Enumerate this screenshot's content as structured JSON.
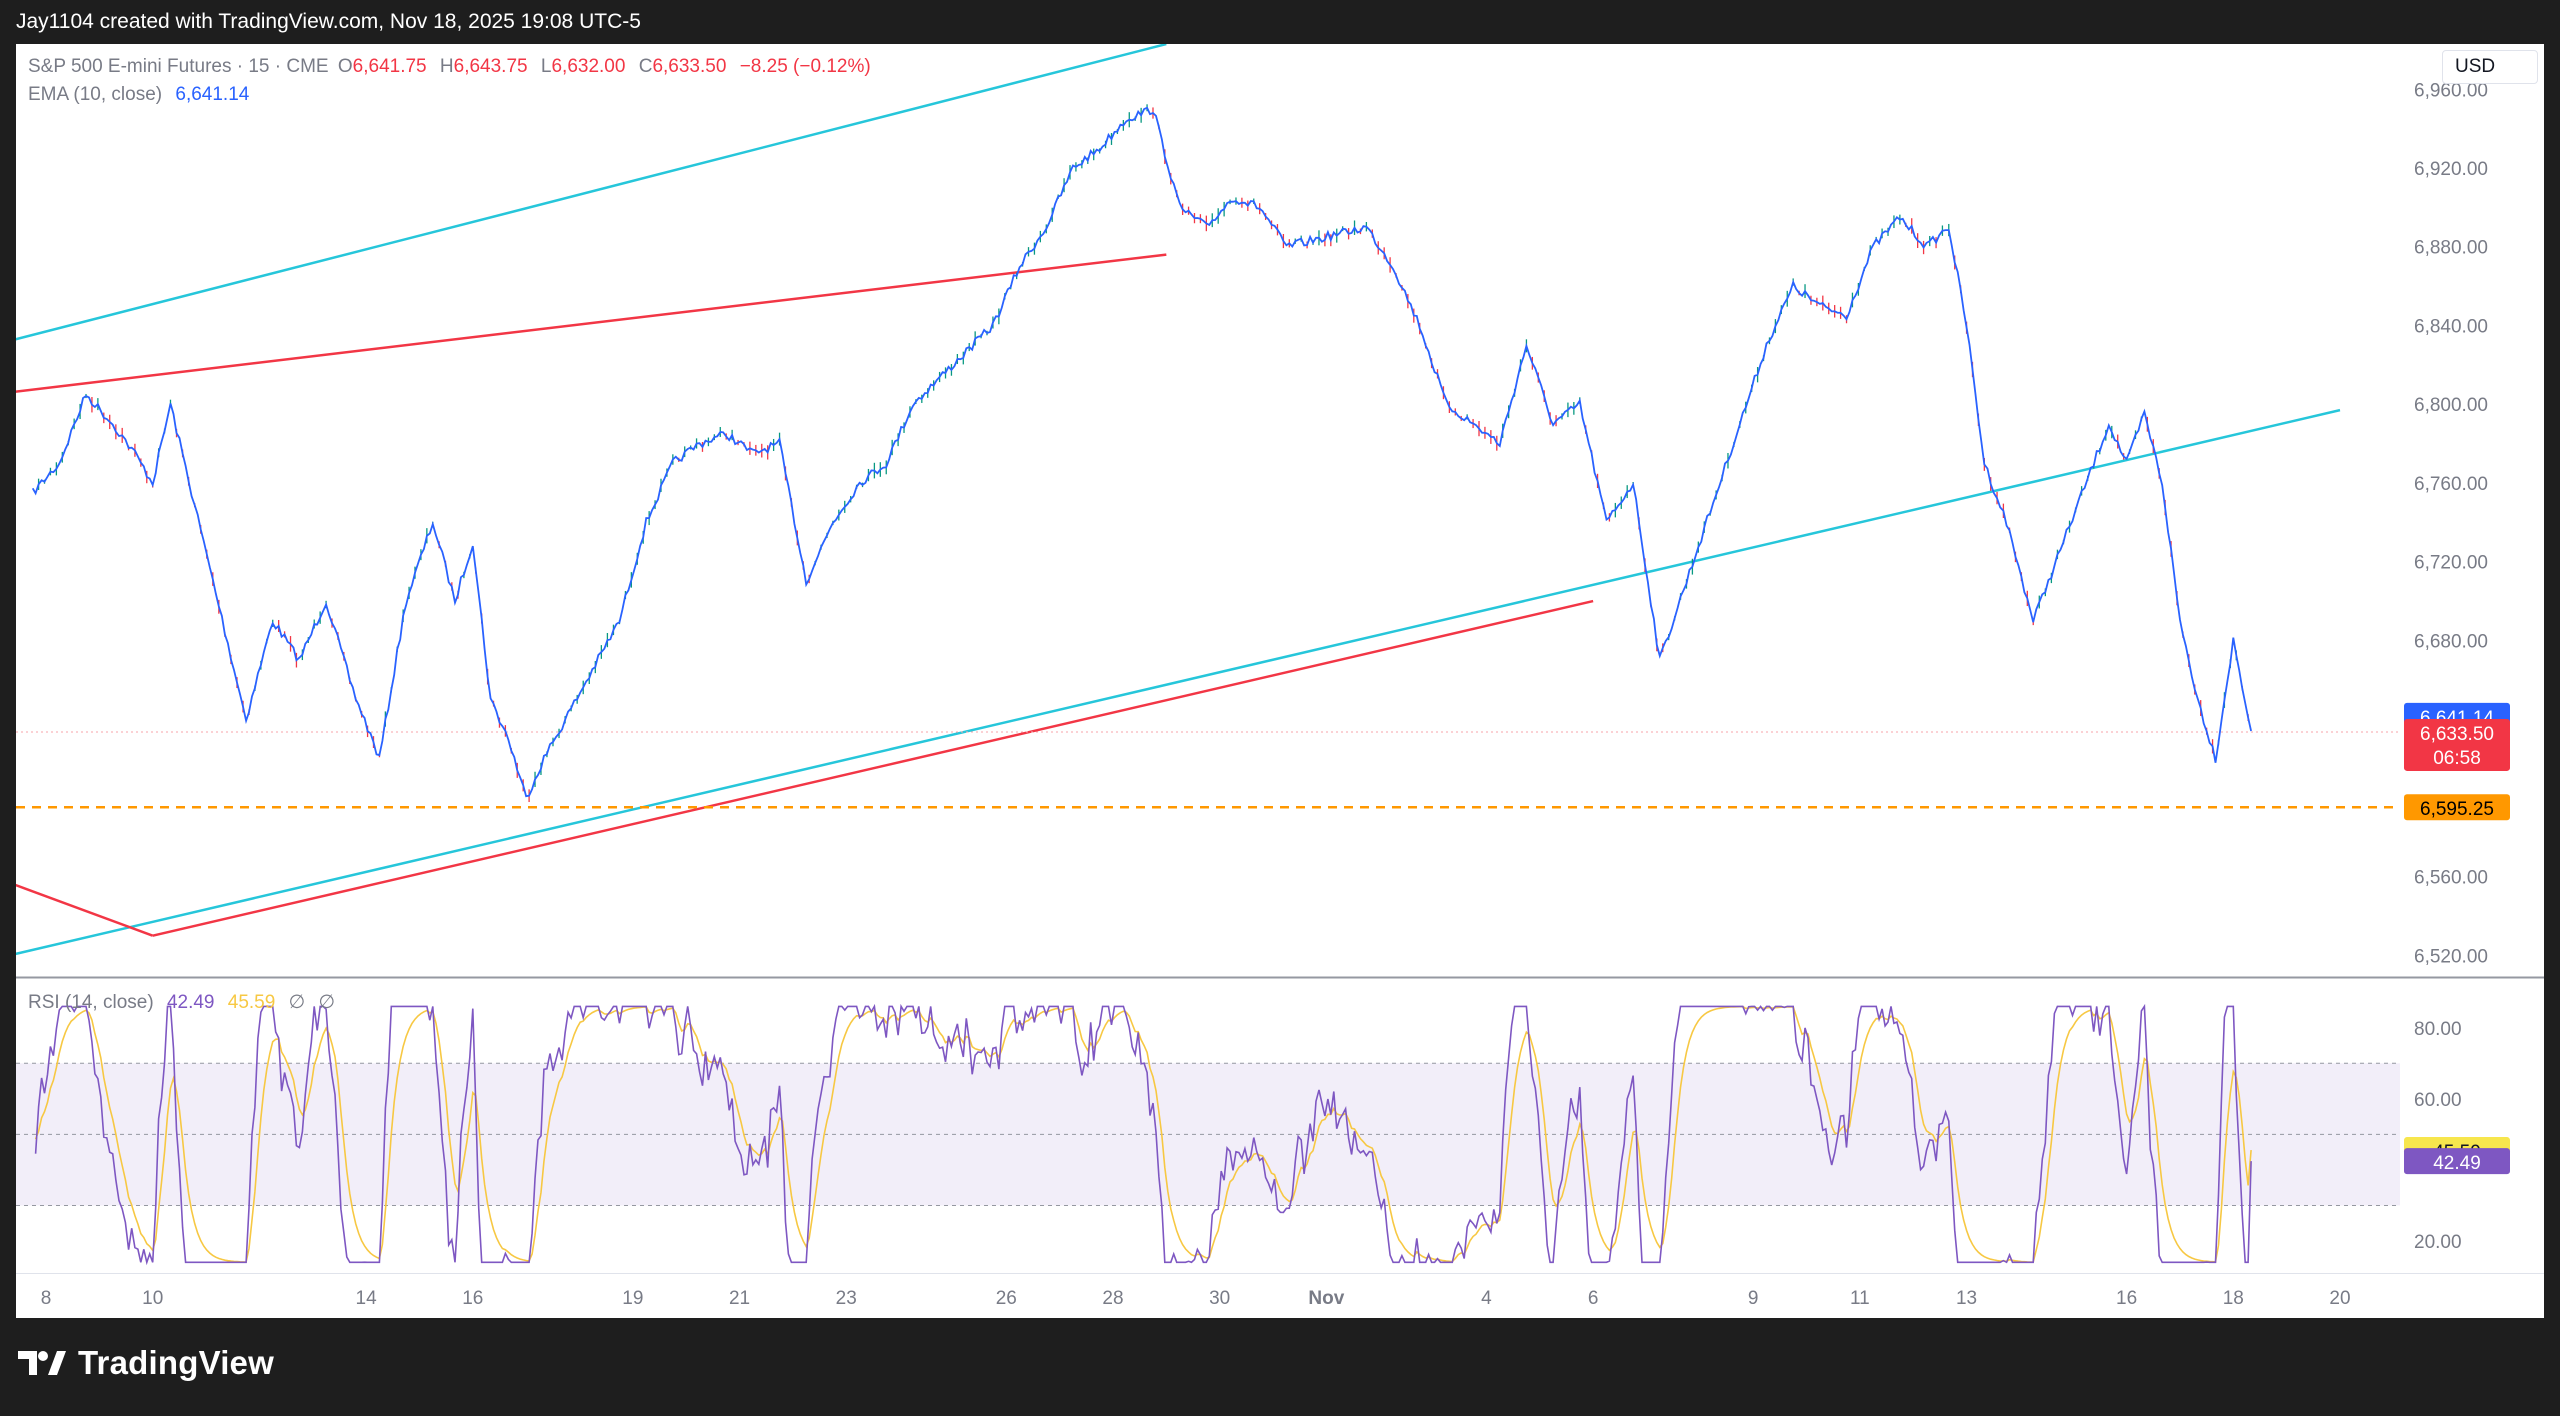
{
  "header": {
    "attribution": "Jay1104 created with TradingView.com, Nov 18, 2025 19:08 UTC-5"
  },
  "legend": {
    "symbol": "S&P 500 E-mini Futures · 15 · CME",
    "o_label": "O",
    "o_value": "6,641.75",
    "h_label": "H",
    "h_value": "6,643.75",
    "l_label": "L",
    "l_value": "6,632.00",
    "c_label": "C",
    "c_value": "6,633.50",
    "change": "−8.25 (−0.12%)",
    "ema_label": "EMA (10, close)",
    "ema_value": "6,641.14"
  },
  "currency": "USD",
  "price_badges": {
    "ema": "6,641.14",
    "last": "6,633.50",
    "countdown": "06:58",
    "level": "6,595.25"
  },
  "rsi_legend": {
    "label": "RSI (14, close)",
    "rsi_value": "42.49",
    "ma_value": "45.59",
    "na1": "∅",
    "na2": "∅"
  },
  "rsi_badges": {
    "ma": "45.59",
    "rsi": "42.49"
  },
  "colors": {
    "price_line": "#2962ff",
    "up": "#089981",
    "down": "#f23645",
    "channel": "#26c6da",
    "trendline": "#f23645",
    "level": "#ff9800",
    "rsi": "#7e57c2",
    "rsi_ma": "#f7c843",
    "rsi_band": "#7e57c2"
  },
  "brand": {
    "name": "TradingView"
  },
  "chart_data": {
    "type": "line",
    "title": "S&P 500 E-mini Futures · 15 · CME",
    "x_ticks": [
      "8",
      "10",
      "14",
      "16",
      "19",
      "21",
      "23",
      "26",
      "28",
      "30",
      "Nov",
      "4",
      "6",
      "9",
      "11",
      "13",
      "16",
      "18",
      "20"
    ],
    "y_ticks": [
      "6,960.00",
      "6,920.00",
      "6,880.00",
      "6,840.00",
      "6,800.00",
      "6,760.00",
      "6,720.00",
      "6,680.00",
      "6,560.00",
      "6,520.00"
    ],
    "ylim": [
      6509,
      6983
    ],
    "x_label_date_range": [
      "Oct 8",
      "Nov 20"
    ],
    "series": [
      {
        "name": "EMA (10, close)",
        "x": [
          "Oct 8",
          "Oct 8",
          "Oct 9",
          "Oct 9",
          "Oct 10",
          "Oct 10",
          "Oct 10",
          "Oct 12",
          "Oct 12",
          "Oct 13",
          "Oct 13",
          "Oct 14",
          "Oct 14",
          "Oct 15",
          "Oct 15",
          "Oct 16",
          "Oct 16",
          "Oct 16",
          "Oct 17",
          "Oct 17",
          "Oct 17",
          "Oct 19",
          "Oct 19",
          "Oct 20",
          "Oct 20",
          "Oct 21",
          "Oct 21",
          "Oct 22",
          "Oct 22",
          "Oct 23",
          "Oct 23",
          "Oct 24",
          "Oct 24",
          "Oct 26",
          "Oct 26",
          "Oct 27",
          "Oct 27",
          "Oct 28",
          "Oct 28",
          "Oct 29",
          "Oct 29",
          "Oct 30",
          "Oct 30",
          "Oct 31",
          "Oct 31",
          "Nov 2",
          "Nov 2",
          "Nov 3",
          "Nov 3",
          "Nov 4",
          "Nov 4",
          "Nov 5",
          "Nov 5",
          "Nov 6",
          "Nov 6",
          "Nov 7",
          "Nov 7",
          "Nov 9",
          "Nov 9",
          "Nov 10",
          "Nov 10",
          "Nov 11",
          "Nov 11",
          "Nov 12",
          "Nov 12",
          "Nov 13",
          "Nov 13",
          "Nov 13",
          "Nov 14",
          "Nov 14",
          "Nov 16",
          "Nov 16",
          "Nov 16",
          "Nov 17",
          "Nov 17",
          "Nov 17",
          "Nov 18",
          "Nov 18",
          "Nov 18"
        ],
        "values": [
          6755,
          6770,
          6805,
          6790,
          6775,
          6760,
          6800,
          6640,
          6690,
          6670,
          6700,
          6655,
          6620,
          6700,
          6740,
          6700,
          6730,
          6650,
          6630,
          6600,
          6620,
          6690,
          6740,
          6770,
          6780,
          6785,
          6775,
          6780,
          6710,
          6740,
          6760,
          6770,
          6800,
          6840,
          6870,
          6890,
          6920,
          6930,
          6945,
          6950,
          6900,
          6890,
          6905,
          6900,
          6880,
          6890,
          6870,
          6840,
          6800,
          6790,
          6780,
          6830,
          6790,
          6800,
          6740,
          6760,
          6670,
          6790,
          6830,
          6860,
          6850,
          6845,
          6880,
          6895,
          6880,
          6890,
          6840,
          6770,
          6740,
          6690,
          6790,
          6770,
          6795,
          6760,
          6690,
          6650,
          6620,
          6680,
          6634
        ]
      }
    ],
    "horizontal_level": 6595.25,
    "channel_upper": [
      [
        "Oct 7",
        6830
      ],
      [
        "Oct 29",
        6983
      ]
    ],
    "channel_lower": [
      [
        "Oct 7",
        6518
      ],
      [
        "Nov 20",
        6797
      ]
    ],
    "red_trendlines": [
      [
        [
          "Oct 7",
          6805
        ],
        [
          "Oct 29",
          6876
        ]
      ],
      [
        [
          "Oct 10",
          6530
        ],
        [
          "Nov 6",
          6700
        ]
      ],
      [
        [
          "Oct 7",
          6560
        ],
        [
          "Oct 10",
          6530
        ]
      ]
    ],
    "rsi": {
      "label": "RSI (14, close)",
      "levels": [
        70,
        50,
        30
      ],
      "y_ticks": [
        "80.00",
        "60.00",
        "20.00"
      ],
      "ylim": [
        11,
        94
      ],
      "last_rsi": 42.49,
      "last_ma": 45.59
    }
  }
}
